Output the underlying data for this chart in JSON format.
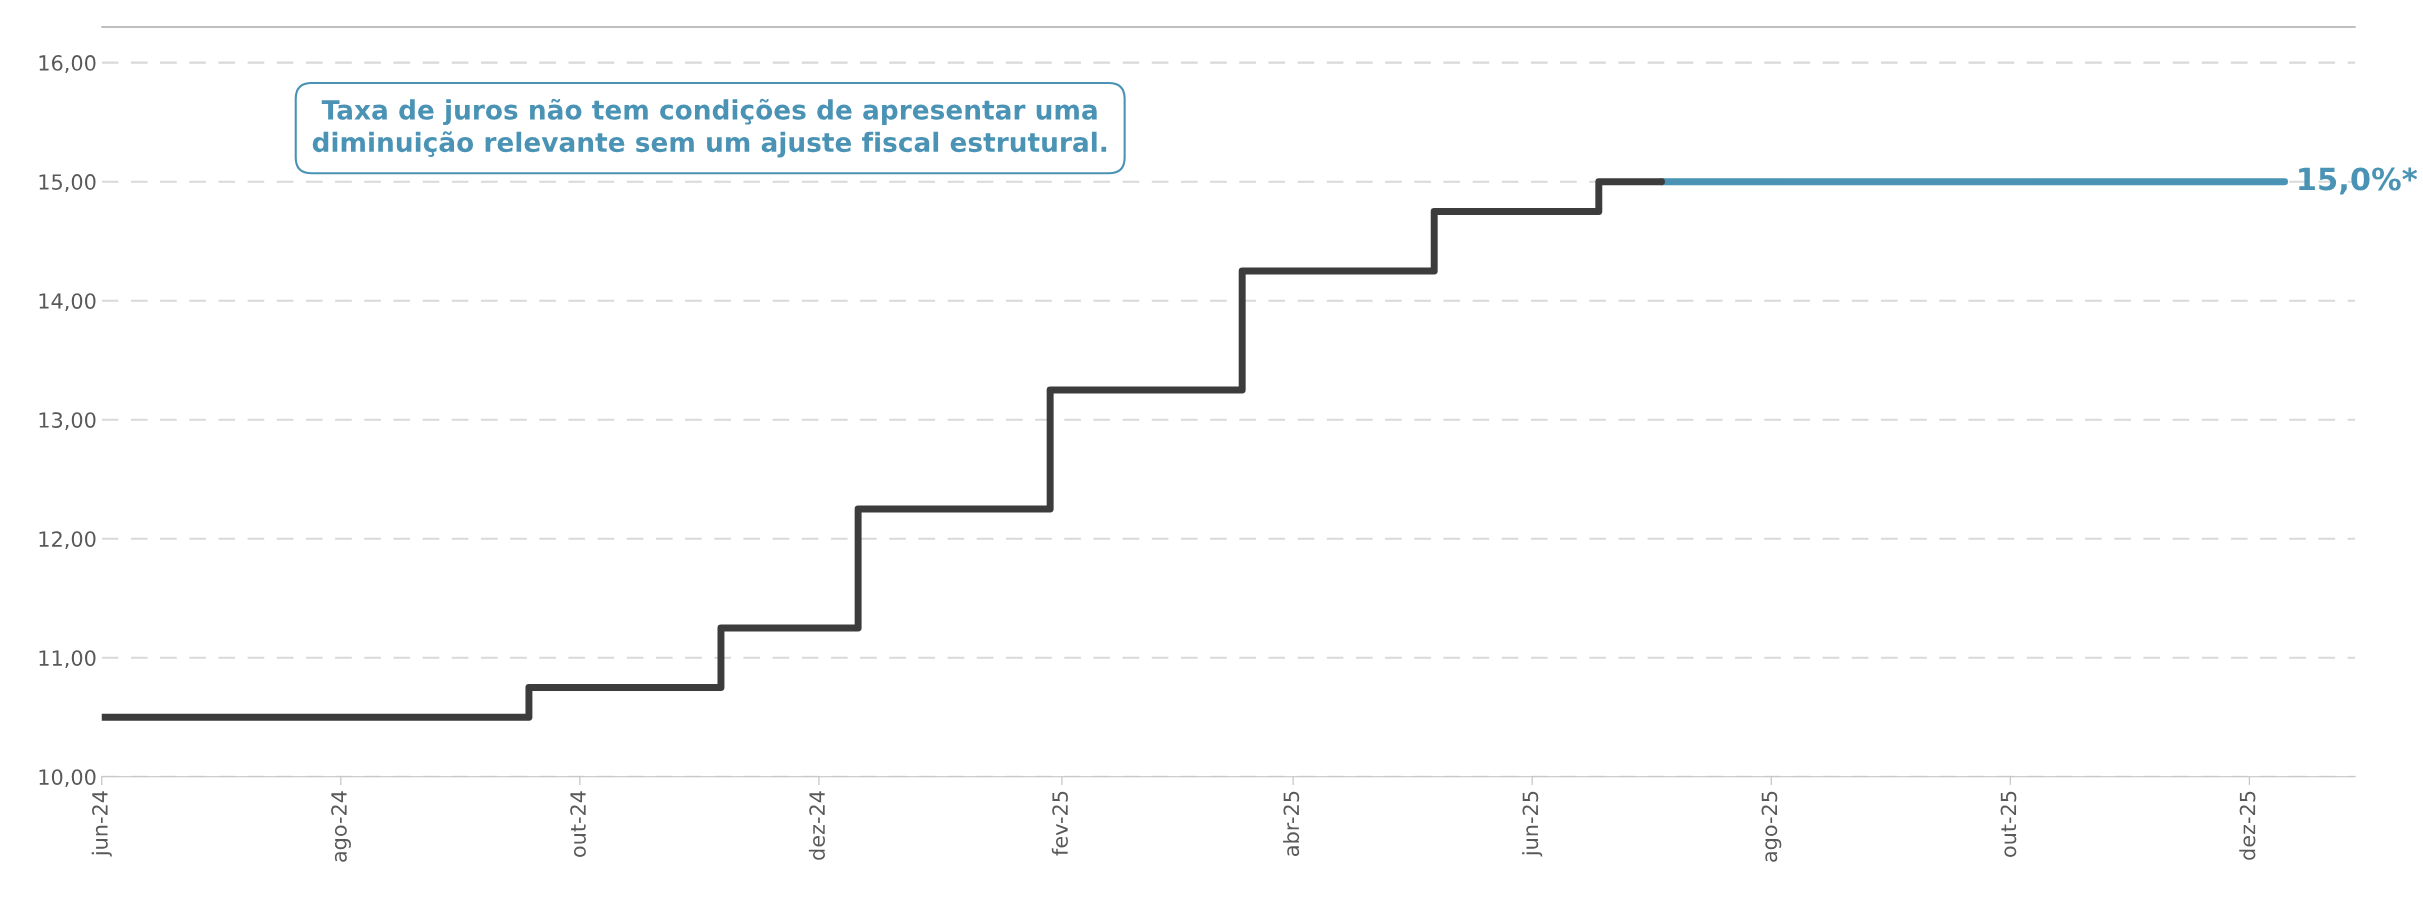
{
  "chart_data": {
    "type": "step",
    "x": [
      "2024-06-01",
      "2024-09-18",
      "2024-11-06",
      "2024-12-11",
      "2025-01-29",
      "2025-03-19",
      "2025-05-07",
      "2025-06-18",
      "2025-07-04"
    ],
    "series": [
      {
        "type": "line",
        "color": "#4a93b4",
        "x": [
          "2025-07-04",
          "2025-12-10"
        ],
        "values": [
          15.0,
          15.0
        ]
      },
      {
        "color": "#3c3c3c",
        "values": [
          10.5,
          10.75,
          11.25,
          12.25,
          13.25,
          14.25,
          14.75,
          15.0,
          15.0
        ]
      }
    ],
    "xlim": [
      "2024-06-01",
      "2025-12-28"
    ],
    "xticks": [
      {
        "value": "2024-06-01",
        "label": "jun-24"
      },
      {
        "value": "2024-08-01",
        "label": "ago-24"
      },
      {
        "value": "2024-10-01",
        "label": "out-24"
      },
      {
        "value": "2024-12-01",
        "label": "dez-24"
      },
      {
        "value": "2025-02-01",
        "label": "fev-25"
      },
      {
        "value": "2025-04-01",
        "label": "abr-25"
      },
      {
        "value": "2025-06-01",
        "label": "jun-25"
      },
      {
        "value": "2025-08-01",
        "label": "ago-25"
      },
      {
        "value": "2025-10-01",
        "label": "out-25"
      },
      {
        "value": "2025-12-01",
        "label": "dez-25"
      }
    ],
    "ylim": [
      10,
      16.3
    ],
    "yticks": [
      {
        "value": 10,
        "label": "10,00"
      },
      {
        "value": 11,
        "label": "11,00"
      },
      {
        "value": 12,
        "label": "12,00"
      },
      {
        "value": 13,
        "label": "13,00"
      },
      {
        "value": 14,
        "label": "14,00"
      },
      {
        "value": 15,
        "label": "15,00"
      },
      {
        "value": 16,
        "label": "16,00"
      }
    ],
    "grid": "y",
    "legend": false,
    "annotations": [
      "Taxa de juros não tem condições de apresentar uma\ndiminuição relevante sem um ajuste fiscal estrutural.",
      {
        "text": "15,0%*",
        "x": "2025-12-10",
        "y": 15.0
      }
    ]
  }
}
